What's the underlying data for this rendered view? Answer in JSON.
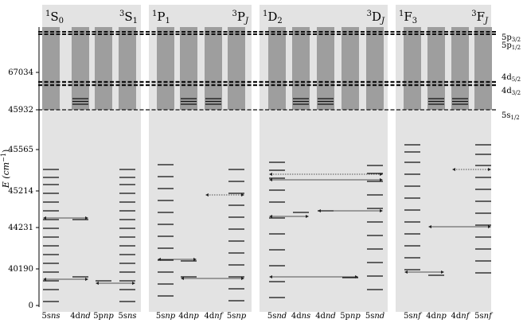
{
  "y_axis": {
    "label": "E (cm",
    "label_sup": "−1",
    "label_close": ")",
    "ticks": [
      "67034",
      "45932",
      "45565",
      "45214",
      "44231",
      "40190",
      "0"
    ]
  },
  "thresholds": [
    {
      "name": "5p",
      "sub": "3/2"
    },
    {
      "name": "5p",
      "sub": "1/2"
    },
    {
      "name": "4d",
      "sub": "5/2"
    },
    {
      "name": "4d",
      "sub": "3/2"
    },
    {
      "name": "5s",
      "sub": "1/2"
    }
  ],
  "panels": [
    {
      "key": "p0",
      "left_title": {
        "sup": "1",
        "base": "S",
        "sub": "0",
        "italic_sub": false
      },
      "right_title": {
        "sup": "3",
        "base": "S",
        "sub": "1",
        "italic_sub": false
      },
      "columns": [
        {
          "prefix": "5s",
          "ital": "ns"
        },
        {
          "prefix": "4d",
          "ital": "nd"
        },
        {
          "prefix": "5p",
          "ital": "np"
        },
        {
          "prefix": "5s",
          "ital": "ns"
        }
      ],
      "series": [
        {
          "col": 0,
          "levels": [
            5,
            20,
            31,
            42,
            53,
            64,
            75,
            86,
            97,
            108,
            119,
            130,
            141,
            152,
            161,
            171
          ]
        },
        {
          "col": 1,
          "levels": [
            36,
            108
          ]
        },
        {
          "col": 2,
          "levels": [
            31
          ]
        },
        {
          "col": 3,
          "levels": [
            5,
            20,
            31,
            42,
            53,
            64,
            75,
            86,
            97,
            108,
            119,
            130,
            141,
            152,
            161,
            171
          ]
        }
      ],
      "ionization_columns": [
        0,
        1,
        2,
        3
      ],
      "compact_columns": [
        1
      ],
      "arrows": [
        {
          "from": 0,
          "to": 1,
          "level": 33,
          "dotted": false
        },
        {
          "from": 2,
          "to": 3,
          "level": 28,
          "dotted": false
        },
        {
          "from": 0,
          "to": 1,
          "level": 110,
          "dotted": false
        }
      ]
    },
    {
      "key": "p1",
      "left_title": {
        "sup": "1",
        "base": "P",
        "sub": "1",
        "italic_sub": false
      },
      "right_title": {
        "sup": "3",
        "base": "P",
        "sub": "J",
        "italic_sub": true
      },
      "columns": [
        {
          "prefix": "5s",
          "ital": "np"
        },
        {
          "prefix": "4d",
          "ital": "np"
        },
        {
          "prefix": "4d",
          "ital": "nf"
        },
        {
          "prefix": "5s",
          "ital": "np"
        }
      ],
      "series": [
        {
          "col": 0,
          "levels": [
            12,
            27,
            42,
            57,
            72,
            87,
            102,
            117,
            132,
            147,
            162,
            177
          ]
        },
        {
          "col": 1,
          "levels": [
            36,
            56
          ]
        },
        {
          "col": 3,
          "levels": [
            6,
            21,
            36,
            51,
            66,
            81,
            96,
            111,
            126,
            141,
            156,
            171
          ]
        }
      ],
      "ionization_columns": [
        0,
        1,
        2,
        3
      ],
      "compact_columns": [
        1,
        2
      ],
      "arrows": [
        {
          "from": 0,
          "to": 1,
          "level": 58,
          "dotted": false
        },
        {
          "from": 1,
          "to": 3,
          "level": 34,
          "dotted": false
        },
        {
          "from": 2,
          "to": 3,
          "level": 139,
          "dotted": true
        }
      ]
    },
    {
      "key": "p2",
      "left_title": {
        "sup": "1",
        "base": "D",
        "sub": "2",
        "italic_sub": false
      },
      "right_title": {
        "sup": "3",
        "base": "D",
        "sub": "J",
        "italic_sub": true
      },
      "columns": [
        {
          "prefix": "5s",
          "ital": "nd"
        },
        {
          "prefix": "4d",
          "ital": "ns"
        },
        {
          "prefix": "4d",
          "ital": "nd"
        },
        {
          "prefix": "5p",
          "ital": "np"
        },
        {
          "prefix": "5s",
          "ital": "nd"
        }
      ],
      "series": [
        {
          "col": 0,
          "levels": [
            10,
            30,
            50,
            70,
            90,
            110,
            130,
            145,
            160,
            170,
            180
          ]
        },
        {
          "col": 1,
          "levels": [
            117
          ]
        },
        {
          "col": 2,
          "levels": [
            119
          ]
        },
        {
          "col": 3,
          "levels": [
            35
          ]
        },
        {
          "col": 4,
          "levels": [
            20,
            37,
            54,
            71,
            88,
            105,
            122,
            139,
            156,
            166,
            176
          ]
        }
      ],
      "ionization_columns": [
        0,
        1,
        2,
        3,
        4
      ],
      "compact_columns": [
        1,
        2
      ],
      "arrows": [
        {
          "from": 0,
          "to": 3,
          "level": 36,
          "dotted": false
        },
        {
          "from": 0,
          "to": 1,
          "level": 112,
          "dotted": false
        },
        {
          "from": 2,
          "to": 4,
          "level": 119,
          "dotted": false
        },
        {
          "from": 0,
          "to": 4,
          "level": 158,
          "dotted": false
        },
        {
          "from": 0,
          "to": 4,
          "level": 165,
          "dotted": true
        }
      ]
    },
    {
      "key": "p3",
      "left_title": {
        "sup": "1",
        "base": "F",
        "sub": "3",
        "italic_sub": false
      },
      "right_title": {
        "sup": "3",
        "base": "F",
        "sub": "J",
        "italic_sub": true
      },
      "columns": [
        {
          "prefix": "5s",
          "ital": "nf"
        },
        {
          "prefix": "4d",
          "ital": "np"
        },
        {
          "prefix": "4d",
          "ital": "nf"
        },
        {
          "prefix": "5s",
          "ital": "nf"
        }
      ],
      "series": [
        {
          "col": 0,
          "levels": [
            45,
            60,
            75,
            90,
            105,
            120,
            135,
            150,
            165,
            180,
            193,
            202
          ]
        },
        {
          "col": 1,
          "levels": [
            38
          ]
        },
        {
          "col": 3,
          "levels": [
            41,
            56,
            71,
            86,
            101,
            116,
            131,
            146,
            161,
            176,
            190,
            202
          ]
        }
      ],
      "ionization_columns": [
        0,
        1,
        2,
        3
      ],
      "compact_columns": [
        1,
        2
      ],
      "arrows": [
        {
          "from": 0,
          "to": 1,
          "level": 42,
          "dotted": false
        },
        {
          "from": 1,
          "to": 3,
          "level": 99,
          "dotted": false
        },
        {
          "from": 2,
          "to": 3,
          "level": 171,
          "dotted": true
        }
      ]
    }
  ]
}
